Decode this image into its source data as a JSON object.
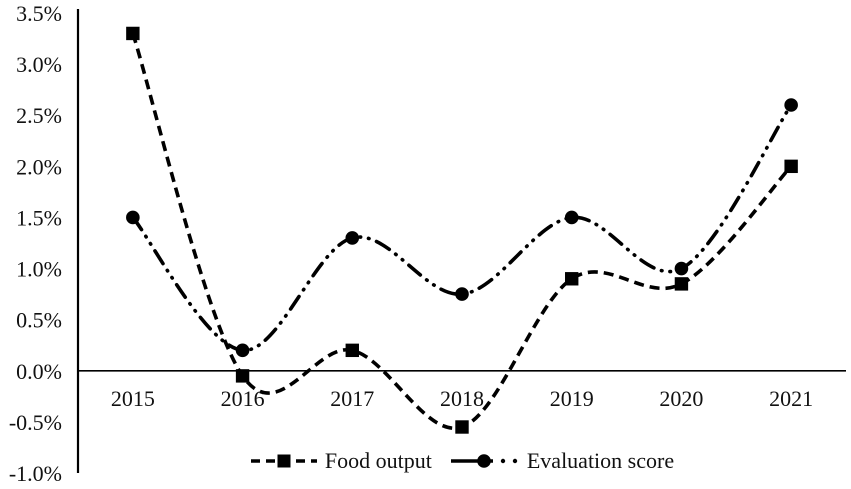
{
  "chart_data": {
    "type": "line",
    "smooth": true,
    "grid": false,
    "x": [
      "2015",
      "2016",
      "2017",
      "2018",
      "2019",
      "2020",
      "2021"
    ],
    "series": [
      {
        "name": "Food output",
        "marker": "square",
        "linestyle": "dashed",
        "color": "#000000",
        "values": [
          3.3,
          -0.05,
          0.2,
          -0.55,
          0.9,
          0.85,
          2.0
        ]
      },
      {
        "name": "Evaluation score",
        "marker": "circle",
        "linestyle": "dash-dot-dot",
        "color": "#000000",
        "values": [
          1.5,
          0.2,
          1.3,
          0.75,
          1.5,
          1.0,
          2.6
        ]
      }
    ],
    "ylim": [
      -1.0,
      3.5
    ],
    "ytick_values": [
      3.5,
      3.0,
      2.5,
      2.0,
      1.5,
      1.0,
      0.5,
      0.0,
      -0.5,
      -1.0
    ],
    "ytick_labels": [
      "3.5%",
      "3.0%",
      "2.5%",
      "2.0%",
      "1.5%",
      "1.0%",
      "0.5%",
      "0.0%",
      "-0.5%",
      "-1.0%"
    ],
    "legend_position": "bottom",
    "axis_color": "#000000",
    "text_color": "#111111"
  }
}
